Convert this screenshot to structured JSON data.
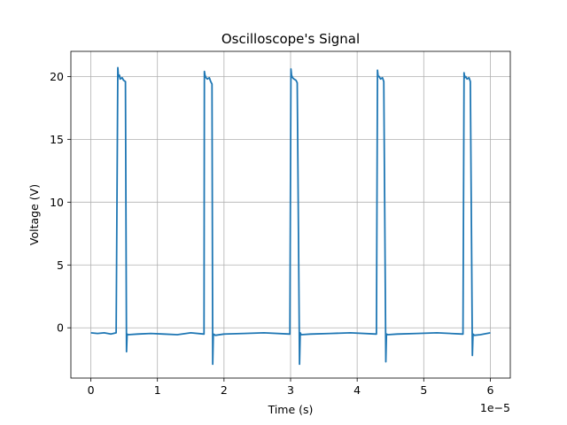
{
  "chart_data": {
    "type": "line",
    "title": "Oscilloscope's Signal",
    "xlabel": "Time (s)",
    "ylabel": "Voltage (V)",
    "x_multiplier_label": "1e−5",
    "x_scale": 1e-05,
    "xlim": [
      -0.3,
      6.3
    ],
    "ylim": [
      -4.0,
      22.0
    ],
    "x_ticks": [
      0,
      1,
      2,
      3,
      4,
      5,
      6
    ],
    "x_tick_labels": [
      "0",
      "1",
      "2",
      "3",
      "4",
      "5",
      "6"
    ],
    "y_ticks": [
      0,
      5,
      10,
      15,
      20
    ],
    "y_tick_labels": [
      "0",
      "5",
      "10",
      "15",
      "20"
    ],
    "grid": true,
    "line_color": "#1f77b4",
    "series": [
      {
        "name": "",
        "x": [
          0.0,
          0.1,
          0.2,
          0.3,
          0.38,
          0.405,
          0.415,
          0.43,
          0.44,
          0.47,
          0.49,
          0.52,
          0.535,
          0.545,
          0.56,
          0.7,
          0.9,
          1.1,
          1.3,
          1.5,
          1.7,
          1.705,
          1.715,
          1.73,
          1.75,
          1.78,
          1.8,
          1.82,
          1.83,
          1.84,
          1.87,
          2.0,
          2.3,
          2.6,
          2.99,
          3.005,
          3.015,
          3.03,
          3.05,
          3.08,
          3.1,
          3.135,
          3.145,
          3.16,
          3.3,
          3.6,
          3.9,
          4.29,
          4.305,
          4.315,
          4.33,
          4.35,
          4.38,
          4.4,
          4.43,
          4.44,
          4.46,
          4.6,
          4.9,
          5.2,
          5.59,
          5.605,
          5.615,
          5.63,
          5.65,
          5.68,
          5.7,
          5.73,
          5.74,
          5.76,
          5.85,
          6.0
        ],
        "y": [
          -0.4,
          -0.45,
          -0.4,
          -0.5,
          -0.4,
          20.7,
          20.0,
          20.1,
          19.8,
          19.9,
          19.7,
          19.6,
          -1.9,
          -0.5,
          -0.55,
          -0.5,
          -0.45,
          -0.5,
          -0.55,
          -0.4,
          -0.5,
          20.4,
          20.1,
          19.9,
          19.8,
          19.9,
          19.6,
          19.4,
          -2.9,
          -0.5,
          -0.6,
          -0.5,
          -0.45,
          -0.4,
          -0.5,
          20.6,
          20.1,
          19.9,
          19.8,
          19.7,
          19.5,
          -2.9,
          -0.4,
          -0.55,
          -0.5,
          -0.45,
          -0.4,
          -0.5,
          20.5,
          20.0,
          20.0,
          19.8,
          19.9,
          19.6,
          -2.7,
          -0.5,
          -0.55,
          -0.5,
          -0.45,
          -0.4,
          -0.5,
          20.3,
          19.9,
          20.0,
          19.8,
          19.9,
          19.6,
          -2.2,
          -0.5,
          -0.6,
          -0.55,
          -0.4
        ]
      }
    ]
  }
}
